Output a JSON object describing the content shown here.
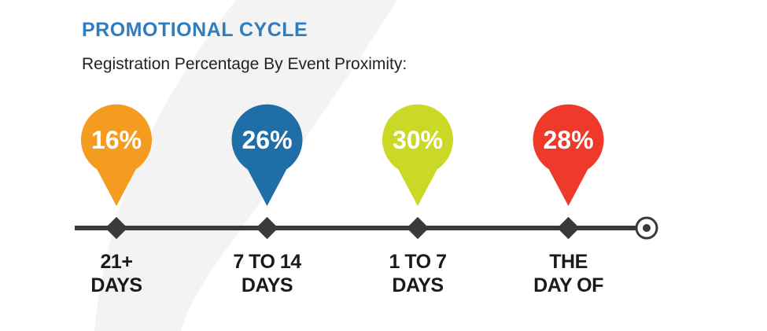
{
  "chart_data": {
    "type": "pin",
    "title": "PROMOTIONAL CYCLE",
    "subtitle": "Registration Percentage By Event Proximity:",
    "categories": [
      "21+\nDAYS",
      "7 TO 14\nDAYS",
      "1 TO 7\nDAYS",
      "THE\nDAY OF"
    ],
    "values": [
      16,
      26,
      30,
      28
    ],
    "value_labels": [
      "16%",
      "26%",
      "30%",
      "28%"
    ],
    "colors": [
      "#f39c1f",
      "#1f6ea8",
      "#cbd826",
      "#ee3a2a"
    ]
  }
}
